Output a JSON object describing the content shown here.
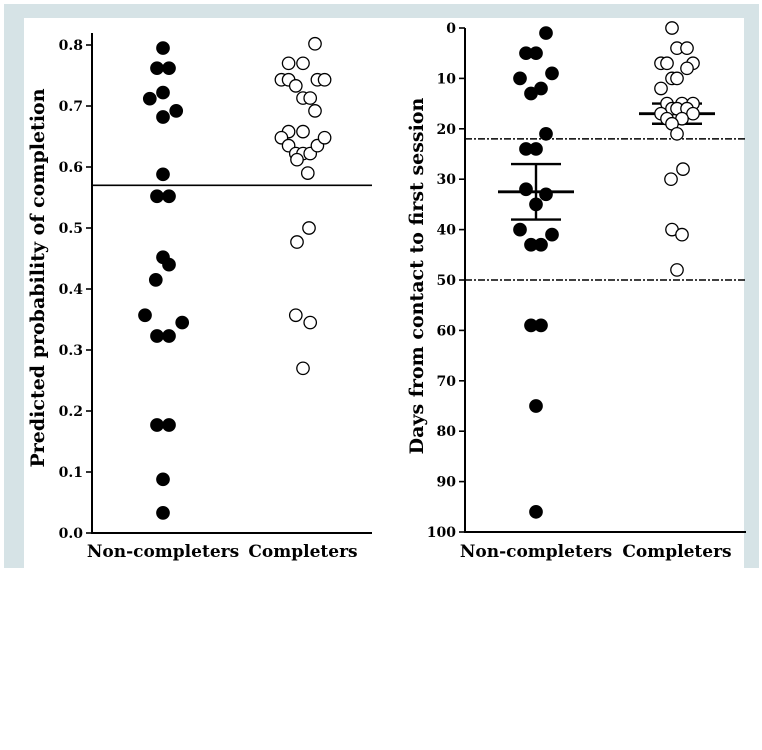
{
  "chart_data": [
    {
      "type": "scatter",
      "ylabel": "Predicted probability of completion",
      "xlabel": "",
      "categories": [
        "Non-completers",
        "Completers"
      ],
      "ylim": [
        0.0,
        0.8
      ],
      "yticks": [
        "0.0",
        "0.1",
        "0.2",
        "0.3",
        "0.4",
        "0.5",
        "0.6",
        "0.7",
        "0.8"
      ],
      "reference_line": 0.57,
      "series": [
        {
          "marker": "filled",
          "points": [
            {
              "jitter": 0,
              "y": 0.795
            },
            {
              "jitter": -0.5,
              "y": 0.762
            },
            {
              "jitter": 0.5,
              "y": 0.762
            },
            {
              "jitter": -1.1,
              "y": 0.712
            },
            {
              "jitter": 0,
              "y": 0.722
            },
            {
              "jitter": 1.1,
              "y": 0.692
            },
            {
              "jitter": 0,
              "y": 0.682
            },
            {
              "jitter": 0,
              "y": 0.588
            },
            {
              "jitter": -0.5,
              "y": 0.552
            },
            {
              "jitter": 0.5,
              "y": 0.552
            },
            {
              "jitter": 0,
              "y": 0.452
            },
            {
              "jitter": 0.5,
              "y": 0.44
            },
            {
              "jitter": -0.6,
              "y": 0.415
            },
            {
              "jitter": -1.5,
              "y": 0.357
            },
            {
              "jitter": 1.6,
              "y": 0.345
            },
            {
              "jitter": -0.5,
              "y": 0.323
            },
            {
              "jitter": 0.5,
              "y": 0.323
            },
            {
              "jitter": -0.5,
              "y": 0.177
            },
            {
              "jitter": 0.5,
              "y": 0.177
            },
            {
              "jitter": 0,
              "y": 0.088
            },
            {
              "jitter": 0,
              "y": 0.033
            }
          ]
        },
        {
          "marker": "open",
          "points": [
            {
              "jitter": 1.0,
              "y": 0.802
            },
            {
              "jitter": -1.2,
              "y": 0.77
            },
            {
              "jitter": 0,
              "y": 0.77
            },
            {
              "jitter": -1.8,
              "y": 0.743
            },
            {
              "jitter": -1.2,
              "y": 0.743
            },
            {
              "jitter": -0.6,
              "y": 0.733
            },
            {
              "jitter": 1.2,
              "y": 0.743
            },
            {
              "jitter": 1.8,
              "y": 0.743
            },
            {
              "jitter": 0,
              "y": 0.713
            },
            {
              "jitter": 0.6,
              "y": 0.713
            },
            {
              "jitter": 1.0,
              "y": 0.692
            },
            {
              "jitter": -1.2,
              "y": 0.658
            },
            {
              "jitter": 0,
              "y": 0.658
            },
            {
              "jitter": -1.8,
              "y": 0.648
            },
            {
              "jitter": -1.2,
              "y": 0.635
            },
            {
              "jitter": -0.6,
              "y": 0.622
            },
            {
              "jitter": 0,
              "y": 0.622
            },
            {
              "jitter": 0.6,
              "y": 0.622
            },
            {
              "jitter": 1.2,
              "y": 0.635
            },
            {
              "jitter": 1.8,
              "y": 0.648
            },
            {
              "jitter": -0.5,
              "y": 0.612
            },
            {
              "jitter": 0.4,
              "y": 0.59
            },
            {
              "jitter": 0.5,
              "y": 0.5
            },
            {
              "jitter": -0.5,
              "y": 0.477
            },
            {
              "jitter": -0.6,
              "y": 0.357
            },
            {
              "jitter": 0.6,
              "y": 0.345
            },
            {
              "jitter": 0,
              "y": 0.27
            }
          ]
        }
      ]
    },
    {
      "type": "scatter",
      "ylabel": "Days from contact to first session",
      "xlabel": "",
      "categories": [
        "Non-completers",
        "Completers"
      ],
      "ylim": [
        0,
        100
      ],
      "y_inverted": true,
      "yticks": [
        "0",
        "10",
        "20",
        "30",
        "40",
        "50",
        "60",
        "70",
        "80",
        "90",
        "100"
      ],
      "dashed_lines": [
        22,
        50
      ],
      "error_bars": [
        {
          "category": "Non-completers",
          "mean": 32.5,
          "lower": 27,
          "upper": 38
        },
        {
          "category": "Completers",
          "mean": 17,
          "lower": 15,
          "upper": 19
        }
      ],
      "series": [
        {
          "marker": "filled",
          "points": [
            {
              "jitter": 1.0,
              "y": 1
            },
            {
              "jitter": -1.0,
              "y": 5
            },
            {
              "jitter": 0,
              "y": 5
            },
            {
              "jitter": 1.6,
              "y": 9
            },
            {
              "jitter": -1.6,
              "y": 10
            },
            {
              "jitter": 0.5,
              "y": 12
            },
            {
              "jitter": -0.5,
              "y": 13
            },
            {
              "jitter": 1.0,
              "y": 21
            },
            {
              "jitter": -1.0,
              "y": 24
            },
            {
              "jitter": 0,
              "y": 24
            },
            {
              "jitter": -1.0,
              "y": 32
            },
            {
              "jitter": 1.0,
              "y": 33
            },
            {
              "jitter": 0,
              "y": 35
            },
            {
              "jitter": -1.6,
              "y": 40
            },
            {
              "jitter": 1.6,
              "y": 41
            },
            {
              "jitter": -0.5,
              "y": 43
            },
            {
              "jitter": 0.5,
              "y": 43
            },
            {
              "jitter": -0.5,
              "y": 59
            },
            {
              "jitter": 0.5,
              "y": 59
            },
            {
              "jitter": 0,
              "y": 75
            },
            {
              "jitter": 0,
              "y": 96
            }
          ]
        },
        {
          "marker": "open",
          "points": [
            {
              "jitter": -0.5,
              "y": 0
            },
            {
              "jitter": 0,
              "y": 4
            },
            {
              "jitter": 1.0,
              "y": 4
            },
            {
              "jitter": -1.6,
              "y": 7
            },
            {
              "jitter": -1.0,
              "y": 7
            },
            {
              "jitter": 1.6,
              "y": 7
            },
            {
              "jitter": 1.0,
              "y": 8
            },
            {
              "jitter": -0.5,
              "y": 10
            },
            {
              "jitter": 0,
              "y": 10
            },
            {
              "jitter": -1.6,
              "y": 12
            },
            {
              "jitter": -1.0,
              "y": 15
            },
            {
              "jitter": 0.5,
              "y": 15
            },
            {
              "jitter": 1.6,
              "y": 15
            },
            {
              "jitter": -0.5,
              "y": 16
            },
            {
              "jitter": 0,
              "y": 16
            },
            {
              "jitter": 1.0,
              "y": 16
            },
            {
              "jitter": -1.6,
              "y": 17
            },
            {
              "jitter": 1.6,
              "y": 17
            },
            {
              "jitter": -1.0,
              "y": 18
            },
            {
              "jitter": 0.5,
              "y": 18
            },
            {
              "jitter": -0.5,
              "y": 19
            },
            {
              "jitter": 0,
              "y": 21
            },
            {
              "jitter": 0.6,
              "y": 28
            },
            {
              "jitter": -0.6,
              "y": 30
            },
            {
              "jitter": -0.5,
              "y": 40
            },
            {
              "jitter": 0.5,
              "y": 41
            },
            {
              "jitter": 0,
              "y": 48
            }
          ]
        }
      ]
    }
  ]
}
